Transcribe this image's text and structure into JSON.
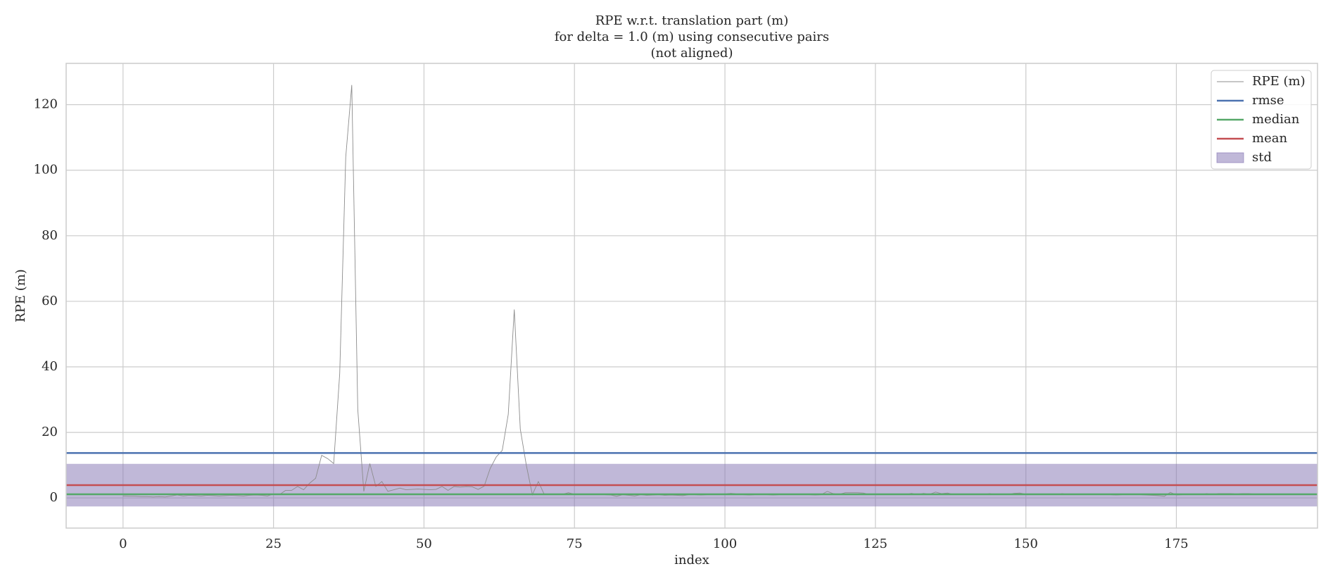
{
  "chart_data": {
    "type": "line",
    "title": [
      "RPE w.r.t. translation part (m)",
      "for delta = 1.0 (m) using consecutive pairs",
      "(not aligned)"
    ],
    "xlabel": "index",
    "ylabel": "RPE (m)",
    "xlim": [
      -9.45,
      198.45
    ],
    "ylim": [
      -9.2,
      132.6
    ],
    "xticks": [
      0,
      25,
      50,
      75,
      100,
      125,
      150,
      175
    ],
    "yticks": [
      0,
      20,
      40,
      60,
      80,
      100,
      120
    ],
    "grid": true,
    "legend": "upper right",
    "series": [
      {
        "name": "RPE (m)",
        "color": "#8c8c8c",
        "values": [
          0.6,
          0.5,
          0.5,
          0.4,
          0.4,
          0.3,
          0.4,
          0.3,
          0.6,
          0.9,
          0.6,
          0.8,
          0.7,
          0.6,
          0.8,
          0.7,
          0.6,
          0.7,
          0.8,
          0.7,
          0.6,
          0.8,
          0.9,
          0.8,
          0.6,
          1.2,
          1.0,
          2.3,
          2.3,
          3.5,
          2.5,
          4.5,
          6,
          13,
          12,
          10.5,
          38,
          104,
          126,
          27,
          2,
          10.5,
          3.5,
          5,
          2,
          2.5,
          3,
          2.5,
          2.6,
          2.7,
          2.6,
          2.5,
          2.6,
          3.5,
          2.3,
          3.5,
          3.3,
          3.5,
          3.4,
          2.6,
          3.6,
          9,
          12.5,
          14.5,
          25.5,
          57.5,
          21,
          10,
          1,
          5,
          1,
          1.2,
          1.0,
          1.1,
          1.6,
          1.1,
          1.0,
          1.0,
          1.1,
          1.0,
          1.0,
          0.9,
          0.5,
          1.0,
          0.8,
          0.6,
          1.0,
          0.8,
          0.9,
          1.0,
          0.8,
          0.9,
          0.8,
          0.7,
          1.0,
          1.0,
          0.9,
          1.0,
          1.1,
          1.0,
          1.2,
          1.4,
          1.2,
          1.0,
          0.9,
          1.0,
          1.1,
          1.0,
          0.9,
          1.0,
          1.1,
          1.0,
          1.0,
          1.1,
          1.0,
          0.9,
          1.0,
          2.0,
          1.3,
          1.1,
          1.6,
          1.6,
          1.6,
          1.5,
          1.0,
          1.1,
          1.0,
          1.2,
          1.0,
          1.1,
          1.0,
          1.4,
          1.0,
          1.4,
          1.1,
          1.8,
          1.3,
          1.5,
          1.0,
          1.1,
          1.0,
          1.1,
          1.0,
          1.1,
          1.3,
          1.0,
          1.1,
          1.0,
          1.4,
          1.5,
          1.1,
          1.2,
          1.2,
          1.1,
          1.2,
          1.0,
          1.3,
          1.1,
          1.0,
          1.1,
          1.0,
          1.1,
          1.0,
          1.1,
          1.0,
          0.9,
          1.0,
          1.1,
          1.0,
          1.0,
          0.9,
          0.8,
          0.7,
          0.5,
          1.7,
          0.9,
          1.0,
          1.1,
          1.0,
          1.0,
          1.3,
          1.1,
          1.3,
          1.3,
          1.3,
          1.2,
          1.3,
          1.3,
          1.2,
          1.0
        ]
      }
    ],
    "stats": [
      {
        "name": "rmse",
        "color": "#4c72b0",
        "value": 13.7
      },
      {
        "name": "median",
        "color": "#55a868",
        "value": 1.1
      },
      {
        "name": "mean",
        "color": "#c44e52",
        "value": 3.9
      }
    ],
    "std": {
      "name": "std",
      "color": "#8172b2",
      "value": 13.0
    }
  }
}
